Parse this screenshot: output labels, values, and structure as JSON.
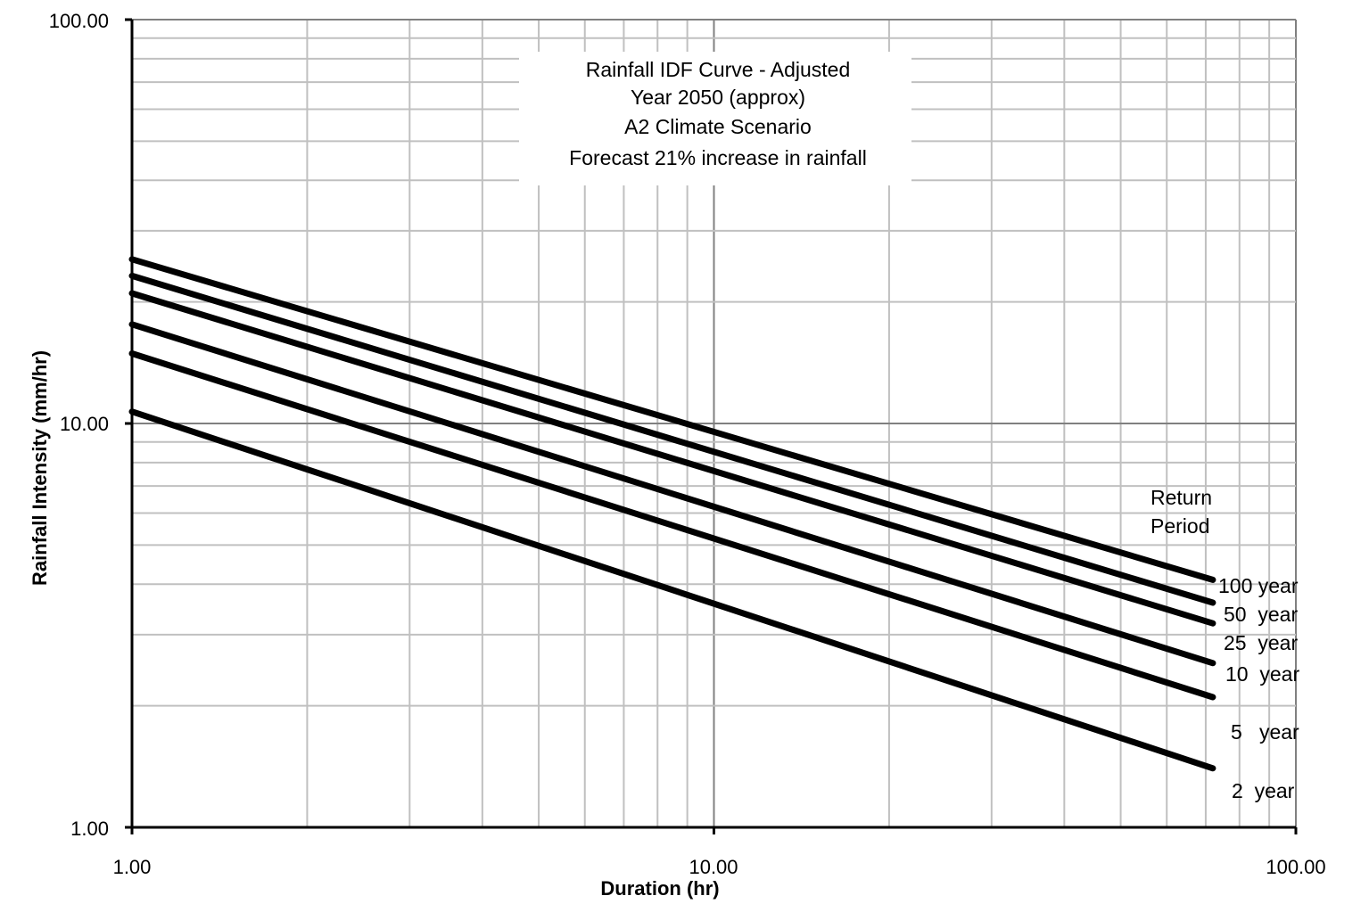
{
  "chart_data": {
    "type": "line",
    "x_scale": "log",
    "y_scale": "log",
    "xlim": [
      1,
      100
    ],
    "ylim": [
      1,
      100
    ],
    "x_ticks": [
      "1.00",
      "10.00",
      "100.00"
    ],
    "y_ticks": [
      "100.00",
      "10.00",
      "1.00"
    ],
    "xlabel": "Duration (hr)",
    "ylabel": "Rainfall Intensity (mm/hr)",
    "grid": true,
    "title_lines": [
      "Rainfall IDF Curve - Adjusted",
      "Year 2050 (approx)",
      "A2 Climate Scenario",
      "Forecast 21% increase in rainfall"
    ],
    "legend_heading": [
      "Return",
      "Period"
    ],
    "series": [
      {
        "name": "100 year",
        "label": "100 year",
        "x": [
          1,
          72
        ],
        "y": [
          25.5,
          4.1
        ]
      },
      {
        "name": "50 year",
        "label": "50  year",
        "x": [
          1,
          72
        ],
        "y": [
          23.2,
          3.6
        ]
      },
      {
        "name": "25 year",
        "label": "25  year",
        "x": [
          1,
          72
        ],
        "y": [
          21.0,
          3.2
        ]
      },
      {
        "name": "10 year",
        "label": "10  year",
        "x": [
          1,
          72
        ],
        "y": [
          17.6,
          2.55
        ]
      },
      {
        "name": "5 year",
        "label": "5   year",
        "x": [
          1,
          72
        ],
        "y": [
          14.9,
          2.1
        ]
      },
      {
        "name": "2 year",
        "label": "2  year",
        "x": [
          1,
          72
        ],
        "y": [
          10.7,
          1.4
        ]
      }
    ],
    "line_color": "#000000",
    "grid_color": "#c0c0c0",
    "major_grid_color": "#808080"
  }
}
